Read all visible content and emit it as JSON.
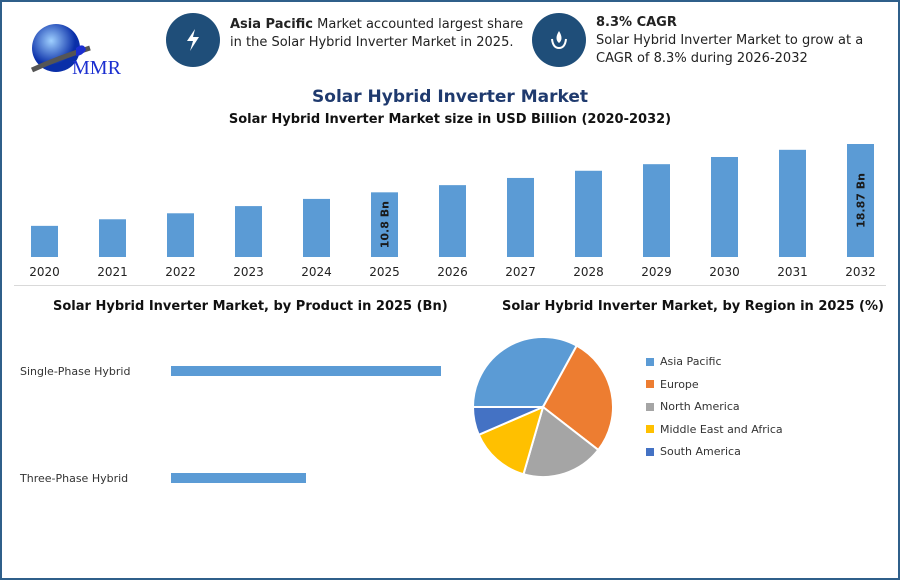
{
  "brand": {
    "logo_text": "MMR"
  },
  "info": [
    {
      "icon": "lightning-icon",
      "bold": "Asia Pacific",
      "text": " Market accounted largest share in the Solar Hybrid Inverter Market in 2025."
    },
    {
      "icon": "drop-hand-icon",
      "bold": "8.3% CAGR",
      "text": "Solar Hybrid Inverter Market to grow at a CAGR of 8.3% during 2026-2032"
    }
  ],
  "header": {
    "title": "Solar Hybrid Inverter Market"
  },
  "colors": {
    "bar": "#5b9bd5",
    "title": "#1f3a6e",
    "border": "#2f5f8a"
  },
  "chart_data": [
    {
      "type": "bar",
      "title": "Solar Hybrid Inverter Market size in USD Billion (2020-2032)",
      "categories": [
        "2020",
        "2021",
        "2022",
        "2023",
        "2024",
        "2025",
        "2026",
        "2027",
        "2028",
        "2029",
        "2030",
        "2031",
        "2032"
      ],
      "values": [
        5.2,
        6.3,
        7.3,
        8.5,
        9.7,
        10.8,
        12.0,
        13.2,
        14.4,
        15.5,
        16.7,
        17.9,
        18.87
      ],
      "data_labels": {
        "2025": "10.8 Bn",
        "2032": "18.87 Bn"
      },
      "ylim": [
        0,
        20
      ],
      "grid": false
    },
    {
      "type": "bar",
      "orientation": "horizontal",
      "title": "Solar Hybrid Inverter Market, by Product in 2025 (Bn)",
      "categories": [
        "Single-Phase Hybrid",
        "Three-Phase Hybrid"
      ],
      "values": [
        7.2,
        3.6
      ]
    },
    {
      "type": "pie",
      "title": "Solar Hybrid Inverter Market, by Region in 2025 (%)",
      "categories": [
        "Asia Pacific",
        "Europe",
        "North America",
        "Middle East and Africa",
        "South America"
      ],
      "values": [
        33,
        27.5,
        19,
        14,
        6.5
      ],
      "colors": [
        "#5b9bd5",
        "#ed7d31",
        "#a5a5a5",
        "#ffc000",
        "#4472c4"
      ],
      "legend": "right"
    }
  ]
}
